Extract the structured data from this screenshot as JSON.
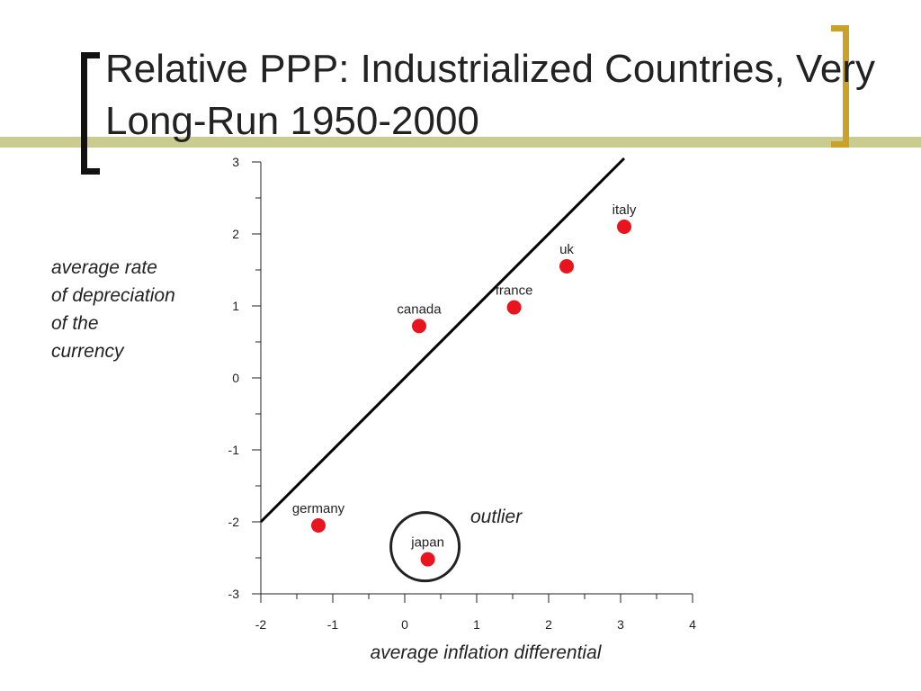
{
  "colors": {
    "accent_bar": "#c9cb8f",
    "bracket_left": "#111111",
    "bracket_right": "#c9a227",
    "point": "#e8141e",
    "line": "#000000"
  },
  "slide": {
    "title": "Relative PPP: Industrialized Countries, Very Long-Run 1950-2000"
  },
  "chart_data": {
    "type": "scatter",
    "title": "",
    "xlabel": "average inflation differential",
    "ylabel_lines": [
      "average rate",
      "of depreciation",
      "of the",
      "currency"
    ],
    "xlim": [
      -2,
      4
    ],
    "ylim": [
      -3,
      3
    ],
    "x_ticks": [
      -2,
      -1,
      0,
      1,
      2,
      3,
      4
    ],
    "y_ticks": [
      3,
      2,
      1,
      0,
      -1,
      -2,
      -3
    ],
    "x_tick_labels": [
      "-2",
      "-1",
      "0",
      "1",
      "2",
      "3",
      "4"
    ],
    "y_tick_labels": [
      "3",
      "2",
      "1",
      "0",
      "-1",
      "-2",
      "-3"
    ],
    "grid": false,
    "points": [
      {
        "label": "italy",
        "x": 3.05,
        "y": 2.1
      },
      {
        "label": "uk",
        "x": 2.25,
        "y": 1.55
      },
      {
        "label": "france",
        "x": 1.52,
        "y": 0.98
      },
      {
        "label": "canada",
        "x": 0.2,
        "y": 0.72
      },
      {
        "label": "germany",
        "x": -1.2,
        "y": -2.05
      },
      {
        "label": "japan",
        "x": 0.32,
        "y": -2.52
      }
    ],
    "reference_line": {
      "x": [
        -2,
        3.05
      ],
      "y": [
        -2,
        3.05
      ]
    },
    "annotation": {
      "text": "outlier",
      "target": "japan"
    }
  }
}
